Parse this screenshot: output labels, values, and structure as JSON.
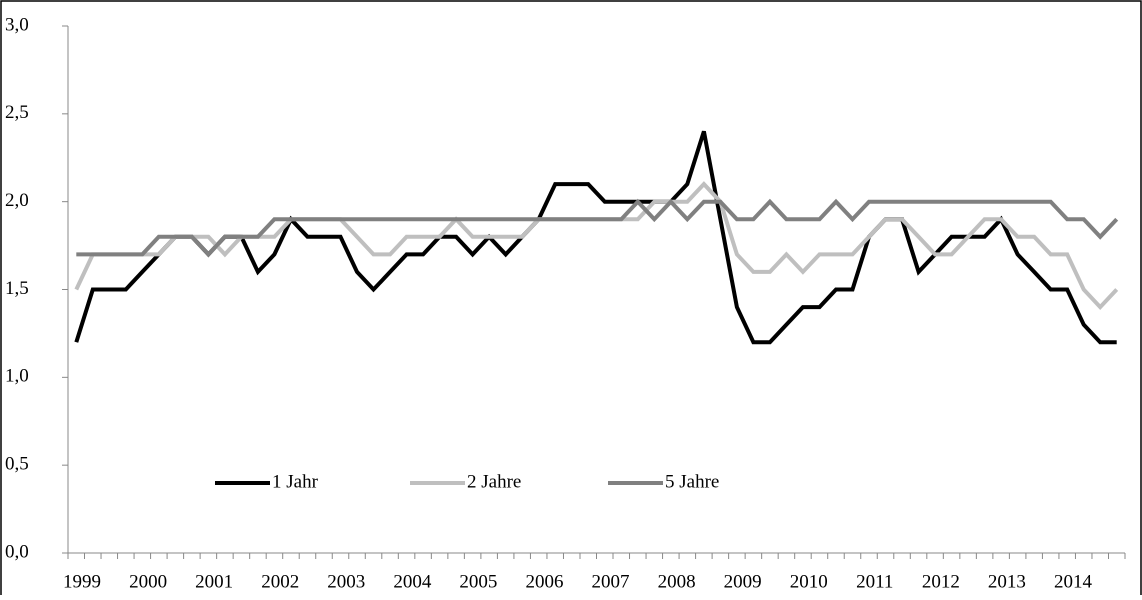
{
  "chart_data": {
    "type": "line",
    "categories": [
      "1999",
      null,
      null,
      null,
      "2000",
      null,
      null,
      null,
      "2001",
      null,
      null,
      null,
      "2002",
      null,
      null,
      null,
      "2003",
      null,
      null,
      null,
      "2004",
      null,
      null,
      null,
      "2005",
      null,
      null,
      null,
      "2006",
      null,
      null,
      null,
      "2007",
      null,
      null,
      null,
      "2008",
      null,
      null,
      null,
      "2009",
      null,
      null,
      null,
      "2010",
      null,
      null,
      null,
      "2011",
      null,
      null,
      null,
      "2012",
      null,
      null,
      null,
      "2013",
      null,
      null,
      null,
      "2014",
      null,
      null,
      null
    ],
    "series": [
      {
        "name": "1 Jahr",
        "color": "#000000",
        "values": [
          1.2,
          1.5,
          1.5,
          1.5,
          1.6,
          1.7,
          1.8,
          1.8,
          1.7,
          1.8,
          1.8,
          1.6,
          1.7,
          1.9,
          1.8,
          1.8,
          1.8,
          1.6,
          1.5,
          1.6,
          1.7,
          1.7,
          1.8,
          1.8,
          1.7,
          1.8,
          1.7,
          1.8,
          1.9,
          2.1,
          2.1,
          2.1,
          2.0,
          2.0,
          2.0,
          2.0,
          2.0,
          2.1,
          2.4,
          1.9,
          1.4,
          1.2,
          1.2,
          1.3,
          1.4,
          1.4,
          1.5,
          1.5,
          1.8,
          1.9,
          1.9,
          1.6,
          1.7,
          1.8,
          1.8,
          1.8,
          1.9,
          1.7,
          1.6,
          1.5,
          1.5,
          1.3,
          1.2,
          1.2
        ]
      },
      {
        "name": "2 Jahre",
        "color": "#bfbfbf",
        "values": [
          1.5,
          1.7,
          1.7,
          1.7,
          1.7,
          1.7,
          1.8,
          1.8,
          1.8,
          1.7,
          1.8,
          1.8,
          1.8,
          1.9,
          1.9,
          1.9,
          1.9,
          1.8,
          1.7,
          1.7,
          1.8,
          1.8,
          1.8,
          1.9,
          1.8,
          1.8,
          1.8,
          1.8,
          1.9,
          1.9,
          1.9,
          1.9,
          1.9,
          1.9,
          1.9,
          2.0,
          2.0,
          2.0,
          2.1,
          2.0,
          1.7,
          1.6,
          1.6,
          1.7,
          1.6,
          1.7,
          1.7,
          1.7,
          1.8,
          1.9,
          1.9,
          1.8,
          1.7,
          1.7,
          1.8,
          1.9,
          1.9,
          1.8,
          1.8,
          1.7,
          1.7,
          1.5,
          1.4,
          1.5
        ]
      },
      {
        "name": "5 Jahre",
        "color": "#808080",
        "values": [
          1.7,
          1.7,
          1.7,
          1.7,
          1.7,
          1.8,
          1.8,
          1.8,
          1.7,
          1.8,
          1.8,
          1.8,
          1.9,
          1.9,
          1.9,
          1.9,
          1.9,
          1.9,
          1.9,
          1.9,
          1.9,
          1.9,
          1.9,
          1.9,
          1.9,
          1.9,
          1.9,
          1.9,
          1.9,
          1.9,
          1.9,
          1.9,
          1.9,
          1.9,
          2.0,
          1.9,
          2.0,
          1.9,
          2.0,
          2.0,
          1.9,
          1.9,
          2.0,
          1.9,
          1.9,
          1.9,
          2.0,
          1.9,
          2.0,
          2.0,
          2.0,
          2.0,
          2.0,
          2.0,
          2.0,
          2.0,
          2.0,
          2.0,
          2.0,
          2.0,
          1.9,
          1.9,
          1.8,
          1.9
        ]
      }
    ],
    "ylim": [
      0,
      3
    ],
    "yticks": [
      {
        "value": 0,
        "label": "0,0"
      },
      {
        "value": 0.5,
        "label": "0,5"
      },
      {
        "value": 1,
        "label": "1,0"
      },
      {
        "value": 1.5,
        "label": "1,5"
      },
      {
        "value": 2,
        "label": "2,0"
      },
      {
        "value": 2.5,
        "label": "2,5"
      },
      {
        "value": 3,
        "label": "3,0"
      }
    ],
    "grid": false,
    "legend": "bottom-left"
  }
}
